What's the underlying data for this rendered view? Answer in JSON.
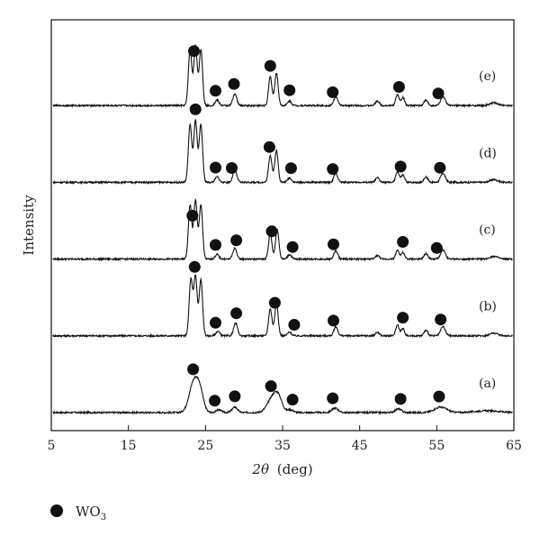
{
  "chart_data": {
    "type": "line",
    "title": "",
    "xlabel_symbol": "2θ",
    "xlabel_unit": "(deg)",
    "ylabel": "Intensity",
    "xlim": [
      5,
      65
    ],
    "x_ticks": [
      5,
      15,
      25,
      35,
      45,
      55,
      65
    ],
    "y_ticks": [],
    "grid": false,
    "legend": {
      "placement": "bottom-left, below plot",
      "entries": [
        {
          "marker": "filled-circle",
          "label": "WO",
          "subscript": "3"
        }
      ]
    },
    "series": [
      {
        "name": "(a)",
        "baseline": 0.0,
        "peaks": [
          [
            23.5,
            0.34,
            0.6
          ],
          [
            24.3,
            0.18,
            0.45
          ],
          [
            26.7,
            0.03,
            0.35
          ],
          [
            28.8,
            0.06,
            0.35
          ],
          [
            33.8,
            0.18,
            0.7
          ],
          [
            34.5,
            0.1,
            0.45
          ],
          [
            36.0,
            0.03,
            0.4
          ],
          [
            41.8,
            0.05,
            0.4
          ],
          [
            50.0,
            0.04,
            0.4
          ],
          [
            55.5,
            0.06,
            0.8
          ],
          [
            61.5,
            0.02,
            1.5
          ]
        ],
        "markers_x": [
          23.4,
          26.2,
          28.8,
          33.5,
          36.3,
          41.5,
          50.3,
          55.3
        ]
      },
      {
        "name": "(b)",
        "baseline": 0.85,
        "peaks": [
          [
            23.1,
            0.62,
            0.22
          ],
          [
            23.7,
            0.66,
            0.22
          ],
          [
            24.4,
            0.62,
            0.22
          ],
          [
            26.6,
            0.05,
            0.25
          ],
          [
            28.9,
            0.14,
            0.25
          ],
          [
            33.4,
            0.3,
            0.22
          ],
          [
            34.2,
            0.36,
            0.22
          ],
          [
            35.9,
            0.04,
            0.25
          ],
          [
            41.9,
            0.1,
            0.25
          ],
          [
            47.3,
            0.04,
            0.25
          ],
          [
            49.9,
            0.12,
            0.22
          ],
          [
            50.6,
            0.08,
            0.22
          ],
          [
            53.6,
            0.06,
            0.25
          ],
          [
            55.8,
            0.1,
            0.3
          ],
          [
            62.4,
            0.03,
            0.5
          ]
        ],
        "markers_x": [
          23.6,
          26.3,
          29.0,
          34.0,
          36.5,
          41.6,
          50.6,
          55.5
        ]
      },
      {
        "name": "(c)",
        "baseline": 1.7,
        "peaks": [
          [
            23.0,
            0.6,
            0.22
          ],
          [
            23.7,
            0.65,
            0.22
          ],
          [
            24.4,
            0.6,
            0.22
          ],
          [
            26.5,
            0.05,
            0.25
          ],
          [
            28.8,
            0.12,
            0.25
          ],
          [
            33.4,
            0.28,
            0.22
          ],
          [
            34.3,
            0.33,
            0.22
          ],
          [
            35.9,
            0.05,
            0.25
          ],
          [
            41.9,
            0.09,
            0.25
          ],
          [
            47.3,
            0.04,
            0.25
          ],
          [
            49.9,
            0.1,
            0.22
          ],
          [
            50.6,
            0.07,
            0.22
          ],
          [
            53.6,
            0.06,
            0.25
          ],
          [
            55.8,
            0.1,
            0.3
          ],
          [
            62.4,
            0.03,
            0.5
          ]
        ],
        "markers_x": [
          23.3,
          26.3,
          29.0,
          33.6,
          36.3,
          41.6,
          50.6,
          55.0
        ]
      },
      {
        "name": "(d)",
        "baseline": 2.55,
        "peaks": [
          [
            23.0,
            0.64,
            0.22
          ],
          [
            23.7,
            0.68,
            0.22
          ],
          [
            24.4,
            0.64,
            0.22
          ],
          [
            26.5,
            0.06,
            0.25
          ],
          [
            28.8,
            0.14,
            0.25
          ],
          [
            33.4,
            0.3,
            0.22
          ],
          [
            34.2,
            0.35,
            0.22
          ],
          [
            35.9,
            0.05,
            0.25
          ],
          [
            41.9,
            0.1,
            0.25
          ],
          [
            47.3,
            0.05,
            0.25
          ],
          [
            49.9,
            0.12,
            0.22
          ],
          [
            50.6,
            0.08,
            0.22
          ],
          [
            53.6,
            0.06,
            0.25
          ],
          [
            55.8,
            0.1,
            0.3
          ],
          [
            62.4,
            0.03,
            0.5
          ]
        ],
        "markers_x": [
          23.7,
          26.3,
          28.4,
          33.3,
          36.1,
          41.5,
          50.3,
          55.4
        ]
      },
      {
        "name": "(e)",
        "baseline": 3.4,
        "peaks": [
          [
            23.0,
            0.62,
            0.22
          ],
          [
            23.7,
            0.66,
            0.22
          ],
          [
            24.4,
            0.62,
            0.22
          ],
          [
            26.5,
            0.06,
            0.25
          ],
          [
            28.8,
            0.13,
            0.25
          ],
          [
            33.4,
            0.32,
            0.22
          ],
          [
            34.2,
            0.36,
            0.22
          ],
          [
            35.9,
            0.05,
            0.25
          ],
          [
            41.9,
            0.1,
            0.25
          ],
          [
            47.3,
            0.05,
            0.25
          ],
          [
            49.9,
            0.12,
            0.22
          ],
          [
            50.6,
            0.09,
            0.22
          ],
          [
            53.6,
            0.06,
            0.25
          ],
          [
            55.8,
            0.1,
            0.3
          ],
          [
            62.4,
            0.03,
            0.5
          ]
        ],
        "markers_x": [
          23.5,
          26.3,
          28.7,
          33.4,
          35.9,
          41.5,
          50.1,
          55.2
        ]
      }
    ],
    "marker_offset": 0.12,
    "intensity_range": [
      -0.2,
      4.35
    ]
  }
}
